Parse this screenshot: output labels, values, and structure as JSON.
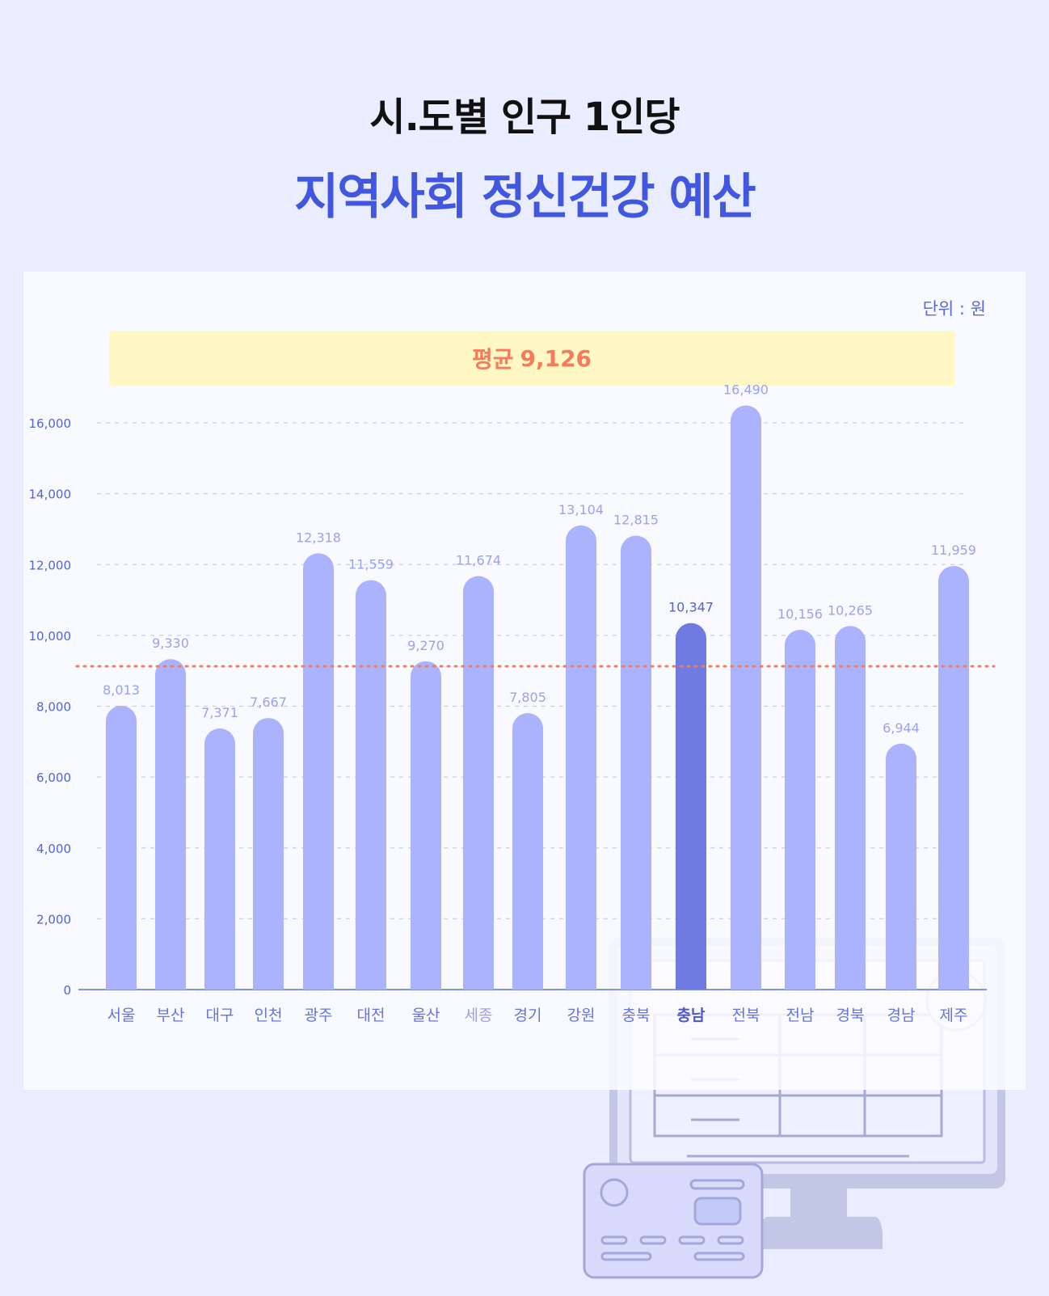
{
  "title_line1": "시.도별 인구 1인당",
  "title_line2": "지역사회 정신건강 예산",
  "unit_label": "단위 : 원",
  "average": {
    "label": "평균",
    "value": "9,126"
  },
  "colors": {
    "bar": "#abb3fd",
    "highlight_bar": "#6f7be0",
    "average_line": "#f57b5b",
    "title_accent": "#4257e0"
  },
  "chart_data": {
    "type": "bar",
    "categories": [
      "서울",
      "부산",
      "대구",
      "인천",
      "광주",
      "대전",
      "울산",
      "세종",
      "경기",
      "강원",
      "충북",
      "충남",
      "전북",
      "전남",
      "경북",
      "경남",
      "제주"
    ],
    "values": [
      8013,
      9330,
      7371,
      7667,
      12318,
      11559,
      9270,
      11674,
      7805,
      13104,
      12815,
      10347,
      16490,
      10156,
      10265,
      6944,
      11959
    ],
    "value_labels": [
      "8,013",
      "9,330",
      "7,371",
      "7,667",
      "12,318",
      "11,559",
      "9,270",
      "11,674",
      "7,805",
      "13,104",
      "12,815",
      "10,347",
      "16,490",
      "10,156",
      "10,265",
      "6,944",
      "11,959"
    ],
    "highlight": "충남",
    "average_line": 9126,
    "ylim": [
      0,
      16000
    ],
    "yticks": [
      0,
      2000,
      4000,
      6000,
      8000,
      10000,
      12000,
      14000,
      16000
    ],
    "ytick_labels": [
      "0",
      "2,000",
      "4,000",
      "6,000",
      "8,000",
      "10,000",
      "12,000",
      "14,000",
      "16,000"
    ],
    "grid": true,
    "xlabel": "",
    "ylabel": ""
  }
}
